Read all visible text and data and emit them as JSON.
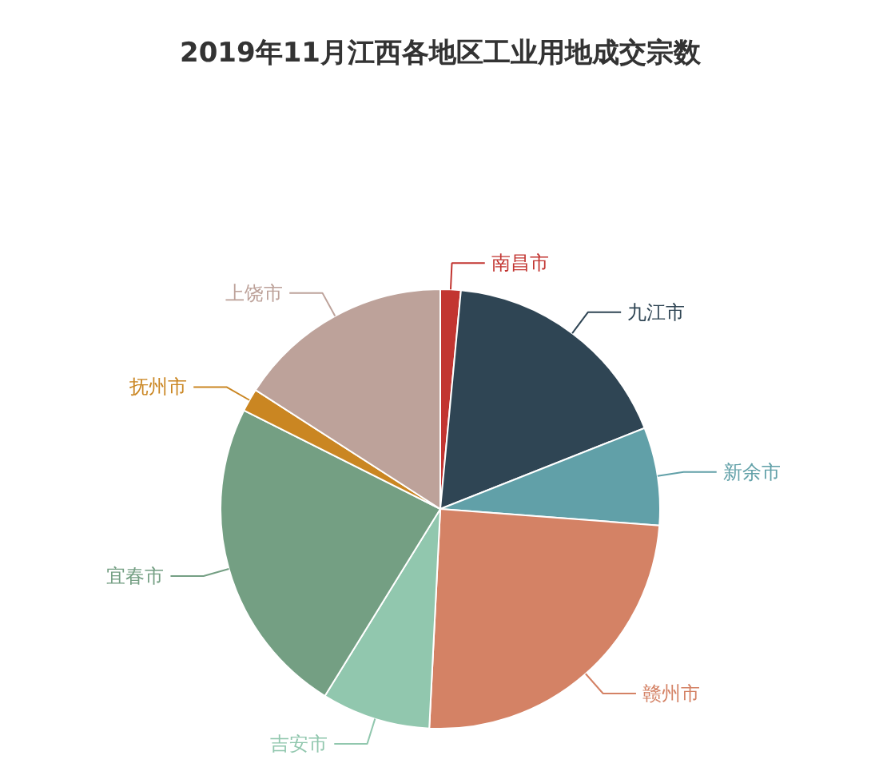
{
  "chart_data": {
    "type": "pie",
    "title": "2019年11月江西各地区工业用地成交宗数",
    "categories": [
      "南昌市",
      "九江市",
      "新余市",
      "赣州市",
      "吉安市",
      "宜春市",
      "抚州市",
      "上饶市"
    ],
    "values": [
      1.5,
      17.5,
      7.2,
      24.6,
      8,
      23.6,
      1.7,
      15.9
    ],
    "colors": [
      "#c23531",
      "#2f4554",
      "#61a0a8",
      "#d48265",
      "#91c7ae",
      "#749f83",
      "#ca8622",
      "#bda29a"
    ]
  }
}
